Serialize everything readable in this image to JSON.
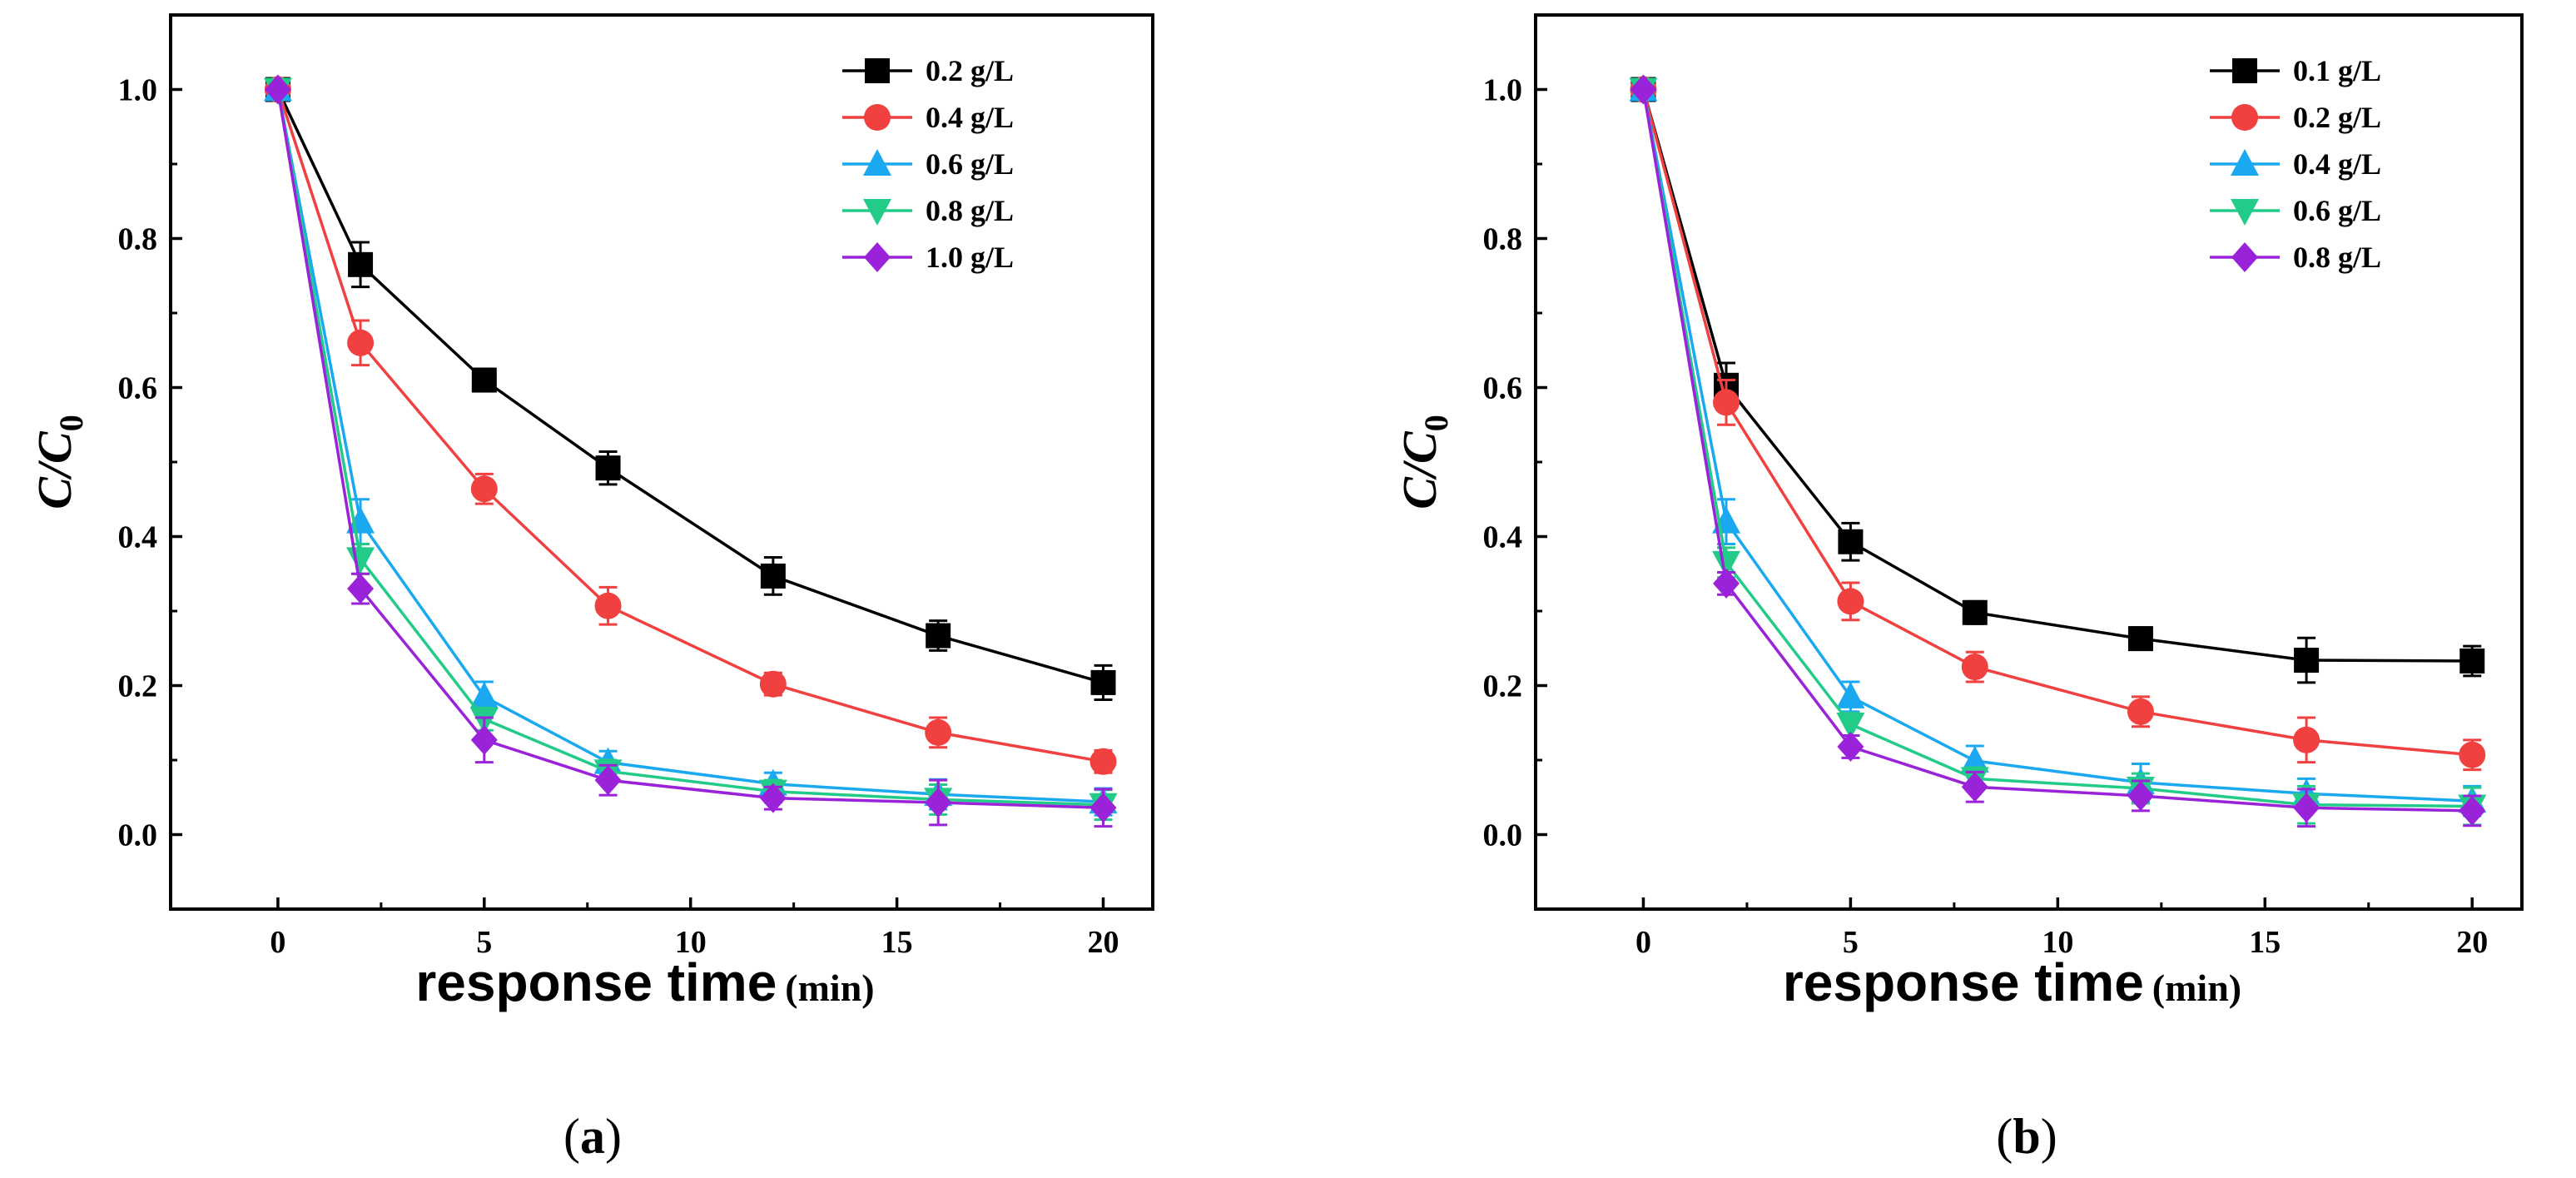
{
  "chart_data": [
    {
      "type": "line",
      "panel_label": "a",
      "xlabel": "response time",
      "xlabel_unit": "(min)",
      "ylabel": "C/C",
      "ylabel_sub": "0",
      "xlim": [
        -2.6,
        21.2
      ],
      "ylim": [
        -0.1,
        1.1
      ],
      "xticks": [
        0,
        5,
        10,
        15,
        20
      ],
      "yticks": [
        0.0,
        0.2,
        0.4,
        0.6,
        0.8,
        1.0
      ],
      "x": [
        0,
        2,
        5,
        8,
        12,
        16,
        20
      ],
      "legend_position": "top-right",
      "series": [
        {
          "name": "0.2 g/L",
          "color": "#000000",
          "marker": "square",
          "values": [
            1.0,
            0.765,
            0.61,
            0.492,
            0.347,
            0.267,
            0.204
          ],
          "errors": [
            0.005,
            0.03,
            0.015,
            0.022,
            0.025,
            0.02,
            0.023
          ]
        },
        {
          "name": "0.4 g/L",
          "color": "#f04040",
          "marker": "circle",
          "values": [
            1.0,
            0.66,
            0.464,
            0.307,
            0.202,
            0.137,
            0.098
          ],
          "errors": [
            0.005,
            0.03,
            0.02,
            0.025,
            0.015,
            0.02,
            0.015
          ]
        },
        {
          "name": "0.6 g/L",
          "color": "#1aa8f0",
          "marker": "triangle-up",
          "values": [
            1.0,
            0.42,
            0.185,
            0.097,
            0.068,
            0.054,
            0.044
          ],
          "errors": [
            0.005,
            0.03,
            0.02,
            0.015,
            0.015,
            0.02,
            0.018
          ]
        },
        {
          "name": "0.8 g/L",
          "color": "#22cc88",
          "marker": "triangle-down",
          "values": [
            1.0,
            0.37,
            0.155,
            0.085,
            0.058,
            0.047,
            0.04
          ],
          "errors": [
            0.005,
            0.02,
            0.015,
            0.015,
            0.015,
            0.02,
            0.02
          ]
        },
        {
          "name": "1.0 g/L",
          "color": "#9a22d8",
          "marker": "diamond",
          "values": [
            1.0,
            0.33,
            0.127,
            0.073,
            0.049,
            0.043,
            0.036
          ],
          "errors": [
            0.005,
            0.02,
            0.03,
            0.02,
            0.015,
            0.03,
            0.025
          ]
        }
      ]
    },
    {
      "type": "line",
      "panel_label": "b",
      "xlabel": "response time",
      "xlabel_unit": "(min)",
      "ylabel": "C/C",
      "ylabel_sub": "0",
      "xlim": [
        -2.6,
        21.2
      ],
      "ylim": [
        -0.1,
        1.1
      ],
      "xticks": [
        0,
        5,
        10,
        15,
        20
      ],
      "yticks": [
        0.0,
        0.2,
        0.4,
        0.6,
        0.8,
        1.0
      ],
      "x": [
        0,
        2,
        5,
        8,
        12,
        16,
        20
      ],
      "legend_position": "top-right",
      "series": [
        {
          "name": "0.1 g/L",
          "color": "#000000",
          "marker": "square",
          "values": [
            1.0,
            0.603,
            0.393,
            0.298,
            0.263,
            0.234,
            0.233
          ],
          "errors": [
            0.005,
            0.03,
            0.025,
            0.015,
            0.015,
            0.03,
            0.02
          ]
        },
        {
          "name": "0.2 g/L",
          "color": "#f04040",
          "marker": "circle",
          "values": [
            1.0,
            0.58,
            0.313,
            0.225,
            0.165,
            0.127,
            0.107
          ],
          "errors": [
            0.005,
            0.03,
            0.025,
            0.02,
            0.02,
            0.03,
            0.02
          ]
        },
        {
          "name": "0.4 g/L",
          "color": "#1aa8f0",
          "marker": "triangle-up",
          "values": [
            1.0,
            0.42,
            0.185,
            0.099,
            0.07,
            0.055,
            0.045
          ],
          "errors": [
            0.005,
            0.03,
            0.02,
            0.02,
            0.025,
            0.02,
            0.02
          ]
        },
        {
          "name": "0.6 g/L",
          "color": "#22cc88",
          "marker": "triangle-down",
          "values": [
            1.0,
            0.365,
            0.148,
            0.075,
            0.062,
            0.04,
            0.038
          ],
          "errors": [
            0.005,
            0.02,
            0.015,
            0.015,
            0.02,
            0.025,
            0.025
          ]
        },
        {
          "name": "0.8 g/L",
          "color": "#9a22d8",
          "marker": "diamond",
          "values": [
            1.0,
            0.337,
            0.118,
            0.064,
            0.052,
            0.036,
            0.032
          ],
          "errors": [
            0.005,
            0.015,
            0.015,
            0.02,
            0.02,
            0.025,
            0.02
          ]
        }
      ]
    }
  ]
}
